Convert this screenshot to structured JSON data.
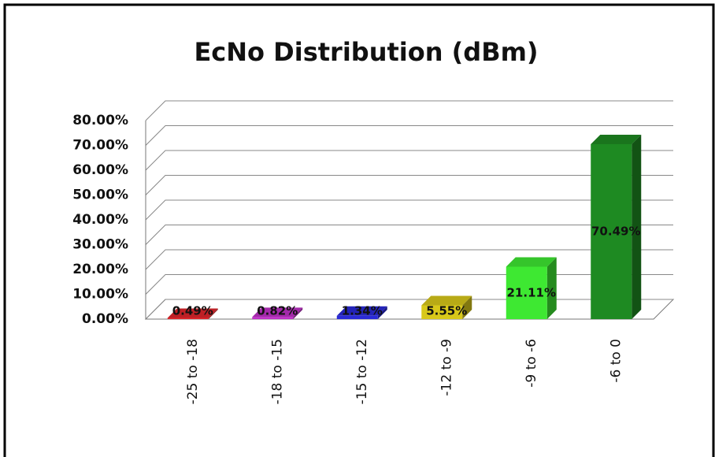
{
  "chart_data": {
    "type": "bar3d",
    "title": "EcNo Distribution  (dBm)",
    "categories": [
      "-25 to -18",
      "-18 to -15",
      "-15 to -12",
      "-12 to -9",
      "-9 to -6",
      "-6 to 0"
    ],
    "values": [
      0.49,
      0.82,
      1.34,
      5.55,
      21.11,
      70.49
    ],
    "value_labels": [
      "0.49%",
      "0.82%",
      "1.34%",
      "5.55%",
      "21.11%",
      "70.49%"
    ],
    "colors": [
      "#e0262b",
      "#c030c8",
      "#2a2ad8",
      "#d8c81a",
      "#3ee832",
      "#1e8a22"
    ],
    "ylim": [
      0,
      80
    ],
    "yticks": [
      {
        "value": 0,
        "label": "0.00%"
      },
      {
        "value": 10,
        "label": "10.00%"
      },
      {
        "value": 20,
        "label": "20.00%"
      },
      {
        "value": 30,
        "label": "30.00%"
      },
      {
        "value": 40,
        "label": "40.00%"
      },
      {
        "value": 50,
        "label": "50.00%"
      },
      {
        "value": 60,
        "label": "60.00%"
      },
      {
        "value": 70,
        "label": "70.00%"
      },
      {
        "value": 80,
        "label": "80.00%"
      }
    ],
    "grid": true
  }
}
